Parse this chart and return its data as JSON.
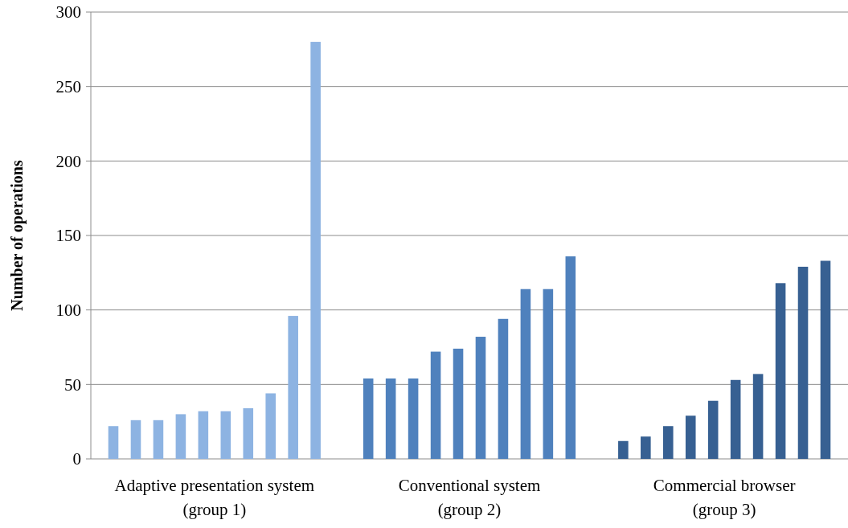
{
  "chart_data": {
    "type": "bar",
    "ylabel": "Number of operations",
    "categories": [
      "Adaptive presentation system\n(group 1)",
      "Conventional system\n(group 2)",
      "Commercial browser\n(group 3)"
    ],
    "series": [
      {
        "colors": [
          "#8db3e2",
          "#4f81bd",
          "#376092"
        ],
        "values": [
          22,
          54,
          12
        ]
      },
      {
        "colors": [
          "#8db3e2",
          "#4f81bd",
          "#376092"
        ],
        "values": [
          26,
          54,
          15
        ]
      },
      {
        "colors": [
          "#8db3e2",
          "#4f81bd",
          "#376092"
        ],
        "values": [
          26,
          54,
          22
        ]
      },
      {
        "colors": [
          "#8db3e2",
          "#4f81bd",
          "#376092"
        ],
        "values": [
          30,
          72,
          29
        ]
      },
      {
        "colors": [
          "#8db3e2",
          "#4f81bd",
          "#376092"
        ],
        "values": [
          32,
          74,
          39
        ]
      },
      {
        "colors": [
          "#8db3e2",
          "#4f81bd",
          "#376092"
        ],
        "values": [
          32,
          82,
          53
        ]
      },
      {
        "colors": [
          "#8db3e2",
          "#4f81bd",
          "#376092"
        ],
        "values": [
          34,
          94,
          57
        ]
      },
      {
        "colors": [
          "#8db3e2",
          "#4f81bd",
          "#376092"
        ],
        "values": [
          44,
          114,
          118
        ]
      },
      {
        "colors": [
          "#8db3e2",
          "#4f81bd",
          "#376092"
        ],
        "values": [
          96,
          114,
          129
        ]
      },
      {
        "colors": [
          "#8db3e2",
          "#4f81bd",
          "#376092"
        ],
        "values": [
          280,
          136,
          133
        ]
      }
    ],
    "ylim": [
      0,
      300
    ],
    "yticks": [
      0,
      50,
      100,
      150,
      200,
      250,
      300
    ],
    "grid": "y"
  }
}
